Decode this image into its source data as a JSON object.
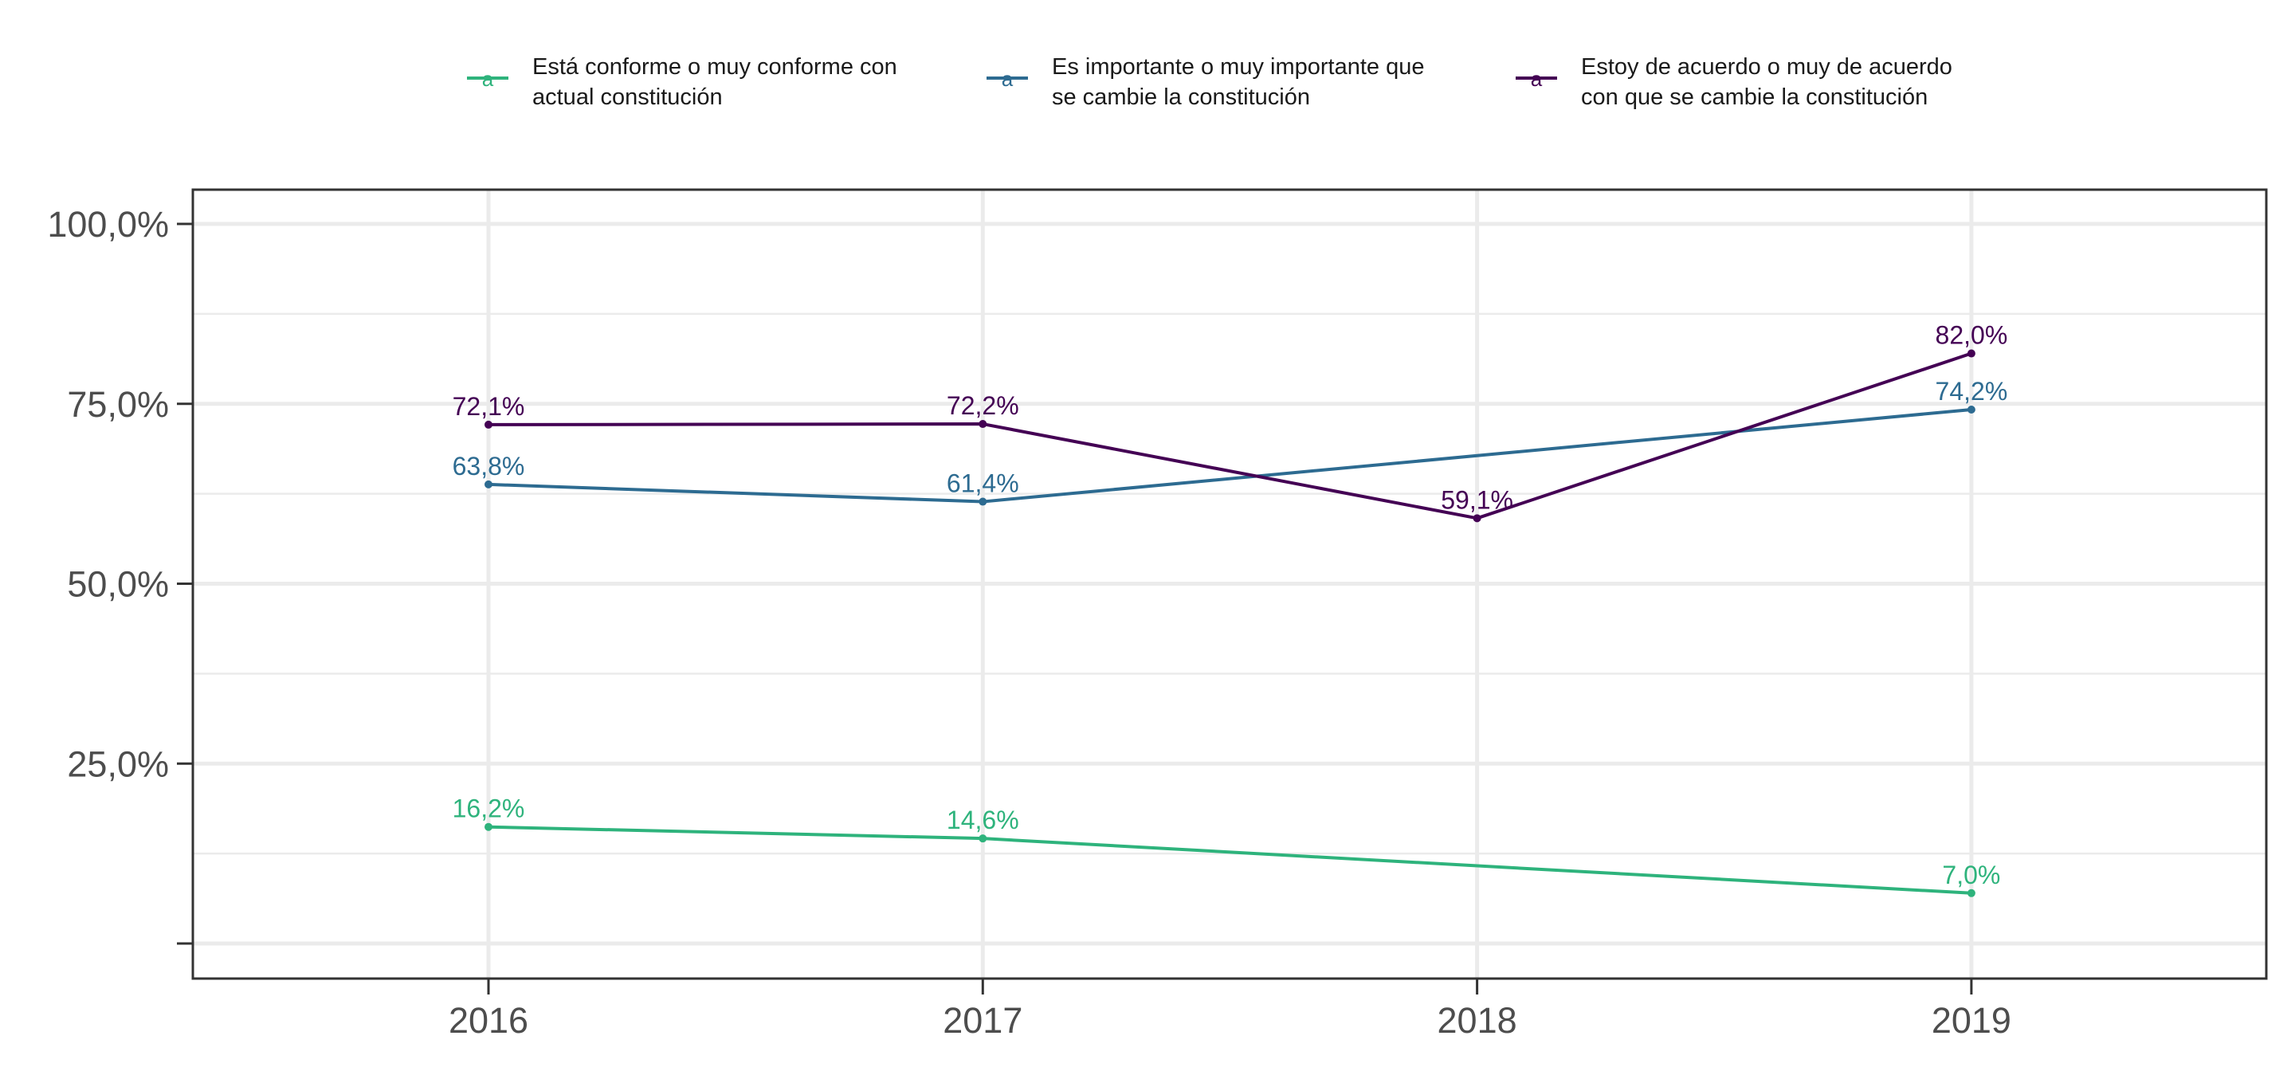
{
  "chart_data": {
    "type": "line",
    "x": [
      "2016",
      "2017",
      "2018",
      "2019"
    ],
    "y_ticks": [
      "100,0%",
      "75,0%",
      "50,0%",
      "25,0%"
    ],
    "ylim": [
      0,
      100
    ],
    "grid": true,
    "legend_position": "top",
    "series": [
      {
        "name_lines": [
          "Está conforme o muy conforme con",
          "actual constitución"
        ],
        "color": "#2EB37C",
        "values": [
          16.2,
          14.6,
          null,
          7.0
        ],
        "labels": [
          "16,2%",
          "14,6%",
          null,
          "7,0%"
        ]
      },
      {
        "name_lines": [
          "Es importante o muy importante que",
          "se cambie la constitución"
        ],
        "color": "#2D6B91",
        "values": [
          63.8,
          61.4,
          null,
          74.2
        ],
        "labels": [
          "63,8%",
          "61,4%",
          null,
          "74,2%"
        ]
      },
      {
        "name_lines": [
          "Estoy de acuerdo o muy de acuerdo",
          "con que se cambie la constitución"
        ],
        "color": "#440154",
        "values": [
          72.1,
          72.2,
          59.1,
          82.0
        ],
        "labels": [
          "72,1%",
          "72,2%",
          "59,1%",
          "82,0%"
        ]
      }
    ]
  }
}
